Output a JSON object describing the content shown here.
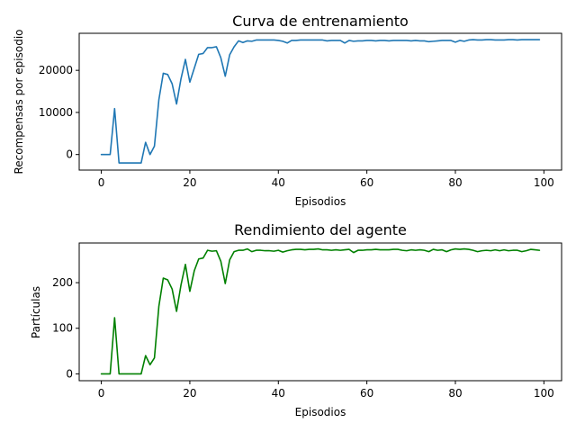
{
  "chart_data": [
    {
      "type": "line",
      "title": "Curva de entrenamiento",
      "xlabel": "Episodios",
      "ylabel": "Recompensas por episodio",
      "xlim": [
        -5,
        104
      ],
      "ylim": [
        -3700,
        28800
      ],
      "xticks": [
        0,
        20,
        40,
        60,
        80,
        100
      ],
      "yticks": [
        0,
        10000,
        20000
      ],
      "color": "#1f77b4",
      "grid": false,
      "series": [
        {
          "x": [
            0,
            1,
            2,
            3,
            4,
            5,
            6,
            7,
            8,
            9,
            10,
            11,
            12,
            13,
            14,
            15,
            16,
            17,
            18,
            19,
            20,
            21,
            22,
            23,
            24,
            25,
            26,
            27,
            28,
            29,
            30,
            31,
            32,
            33,
            34,
            35,
            36,
            37,
            38,
            39,
            40,
            41,
            42,
            43,
            44,
            45,
            46,
            47,
            48,
            49,
            50,
            51,
            52,
            53,
            54,
            55,
            56,
            57,
            58,
            59,
            60,
            61,
            62,
            63,
            64,
            65,
            66,
            67,
            68,
            69,
            70,
            71,
            72,
            73,
            74,
            75,
            76,
            77,
            78,
            79,
            80,
            81,
            82,
            83,
            84,
            85,
            86,
            87,
            88,
            89,
            90,
            91,
            92,
            93,
            94,
            95,
            96,
            97,
            98,
            99
          ],
          "y": [
            0,
            0,
            0,
            10900,
            -2000,
            -2000,
            -2000,
            -2000,
            -2000,
            -2000,
            2900,
            0,
            2000,
            13000,
            19300,
            19000,
            16800,
            12000,
            18000,
            22600,
            17200,
            20500,
            23800,
            24000,
            25400,
            25400,
            25600,
            23000,
            18600,
            23700,
            25600,
            27000,
            26600,
            27000,
            26900,
            27200,
            27200,
            27200,
            27200,
            27200,
            27100,
            26900,
            26500,
            27100,
            27100,
            27200,
            27200,
            27200,
            27200,
            27200,
            27200,
            27000,
            27100,
            27100,
            27100,
            26500,
            27100,
            26900,
            27000,
            27000,
            27100,
            27100,
            27000,
            27100,
            27100,
            27000,
            27100,
            27100,
            27100,
            27100,
            27000,
            27100,
            27000,
            27000,
            26800,
            26900,
            27000,
            27100,
            27100,
            27100,
            26700,
            27100,
            26900,
            27200,
            27300,
            27200,
            27200,
            27300,
            27300,
            27200,
            27200,
            27200,
            27300,
            27300,
            27200,
            27300,
            27300,
            27300,
            27300,
            27300
          ]
        }
      ]
    },
    {
      "type": "line",
      "title": "Rendimiento del agente",
      "xlabel": "Episodios",
      "ylabel": "Partículas",
      "xlim": [
        -5,
        104
      ],
      "ylim": [
        -15,
        287
      ],
      "xticks": [
        0,
        20,
        40,
        60,
        80,
        100
      ],
      "yticks": [
        0,
        100,
        200
      ],
      "color": "#008000",
      "grid": false,
      "series": [
        {
          "x": [
            0,
            1,
            2,
            3,
            4,
            5,
            6,
            7,
            8,
            9,
            10,
            11,
            12,
            13,
            14,
            15,
            16,
            17,
            18,
            19,
            20,
            21,
            22,
            23,
            24,
            25,
            26,
            27,
            28,
            29,
            30,
            31,
            32,
            33,
            34,
            35,
            36,
            37,
            38,
            39,
            40,
            41,
            42,
            43,
            44,
            45,
            46,
            47,
            48,
            49,
            50,
            51,
            52,
            53,
            54,
            55,
            56,
            57,
            58,
            59,
            60,
            61,
            62,
            63,
            64,
            65,
            66,
            67,
            68,
            69,
            70,
            71,
            72,
            73,
            74,
            75,
            76,
            77,
            78,
            79,
            80,
            81,
            82,
            83,
            84,
            85,
            86,
            87,
            88,
            89,
            90,
            91,
            92,
            93,
            94,
            95,
            96,
            97,
            98,
            99
          ],
          "y": [
            0,
            0,
            0,
            123,
            0,
            0,
            0,
            0,
            0,
            0,
            40,
            20,
            35,
            148,
            210,
            206,
            186,
            137,
            195,
            240,
            181,
            226,
            252,
            254,
            271,
            269,
            270,
            247,
            198,
            250,
            268,
            271,
            271,
            274,
            268,
            271,
            271,
            270,
            270,
            269,
            271,
            267,
            270,
            272,
            273,
            273,
            272,
            273,
            273,
            274,
            272,
            272,
            271,
            272,
            271,
            272,
            273,
            266,
            271,
            271,
            272,
            272,
            273,
            272,
            272,
            272,
            273,
            273,
            271,
            270,
            272,
            271,
            272,
            271,
            268,
            273,
            271,
            272,
            268,
            272,
            274,
            273,
            274,
            273,
            271,
            268,
            270,
            271,
            270,
            272,
            270,
            272,
            270,
            271,
            271,
            268,
            270,
            273,
            272,
            271
          ]
        }
      ]
    }
  ]
}
